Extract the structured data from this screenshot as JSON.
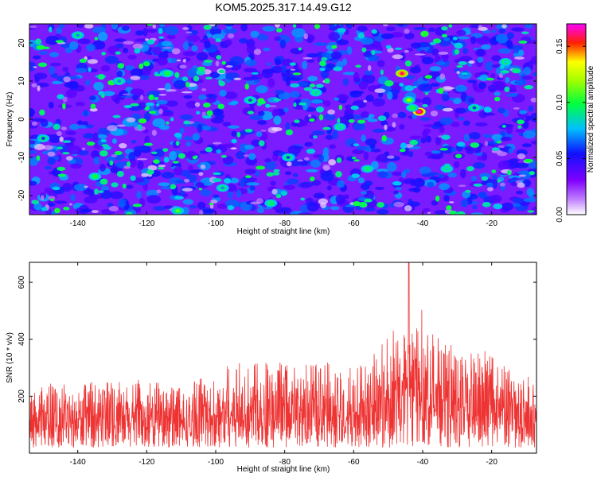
{
  "title": "KOM5.2025.317.14.49.G12",
  "colors": {
    "snr_line": "#ee3333",
    "frame": "#000000"
  },
  "chart_data": [
    {
      "type": "heatmap",
      "title": "KOM5.2025.317.14.49.G12",
      "xlabel": "Height of straight line (km)",
      "ylabel": "Frequency (Hz)",
      "xlim": [
        -154,
        -7
      ],
      "ylim": [
        -25,
        25
      ],
      "x_ticks": [
        -140,
        -120,
        -100,
        -80,
        -60,
        -40,
        -20
      ],
      "y_ticks": [
        -20,
        -10,
        0,
        10,
        20
      ],
      "colorbar": {
        "label": "Normalized spectral amplitude",
        "range": [
          0.0,
          0.17
        ],
        "ticks": [
          "0.00",
          "0.05",
          "0.10",
          "0.15"
        ],
        "colormap": "rainbow (white-violet-blue-cyan-green-yellow-red-magenta)"
      },
      "hotspots": [
        {
          "x": -46,
          "y": 12,
          "value": 0.16
        },
        {
          "x": -44,
          "y": 5,
          "value": 0.12
        },
        {
          "x": -41,
          "y": 2,
          "value": 0.17
        },
        {
          "x": -43,
          "y": 3,
          "value": 0.1
        },
        {
          "x": -114,
          "y": 12,
          "value": 0.1
        },
        {
          "x": -135,
          "y": -15,
          "value": 0.1
        },
        {
          "x": -111,
          "y": -24,
          "value": 0.11
        },
        {
          "x": -56,
          "y": -13,
          "value": 0.09
        },
        {
          "x": -64,
          "y": -2,
          "value": 0.08
        },
        {
          "x": -71,
          "y": 7,
          "value": 0.08
        },
        {
          "x": -33,
          "y": -13,
          "value": 0.08
        },
        {
          "x": -16,
          "y": 15,
          "value": 0.08
        },
        {
          "x": -84,
          "y": -22,
          "value": 0.09
        },
        {
          "x": -140,
          "y": 22,
          "value": 0.07
        },
        {
          "x": -128,
          "y": 10,
          "value": 0.07
        },
        {
          "x": -90,
          "y": 5,
          "value": 0.06
        },
        {
          "x": -79,
          "y": -10,
          "value": 0.06
        },
        {
          "x": -150,
          "y": -5,
          "value": 0.06
        },
        {
          "x": -98,
          "y": -18,
          "value": 0.07
        },
        {
          "x": -25,
          "y": 3,
          "value": 0.06
        }
      ]
    },
    {
      "type": "line",
      "title": "",
      "xlabel": "Height of straight line (km)",
      "ylabel": "SNR (10 * v/v)",
      "xlim": [
        -154,
        -7
      ],
      "ylim": [
        0,
        670
      ],
      "x_ticks": [
        -140,
        -120,
        -100,
        -80,
        -60,
        -40,
        -20
      ],
      "y_ticks": [
        200,
        400,
        600
      ],
      "envelope": {
        "x": [
          -154,
          -140,
          -130,
          -120,
          -110,
          -100,
          -92,
          -85,
          -80,
          -70,
          -62,
          -55,
          -50,
          -47,
          -45,
          -43,
          -40,
          -37,
          -33,
          -28,
          -22,
          -15,
          -7
        ],
        "y": [
          240,
          250,
          250,
          260,
          230,
          290,
          340,
          320,
          320,
          330,
          300,
          330,
          450,
          440,
          480,
          560,
          530,
          440,
          400,
          380,
          360,
          300,
          260
        ]
      },
      "peak": {
        "x": -44,
        "y": 670
      }
    }
  ]
}
